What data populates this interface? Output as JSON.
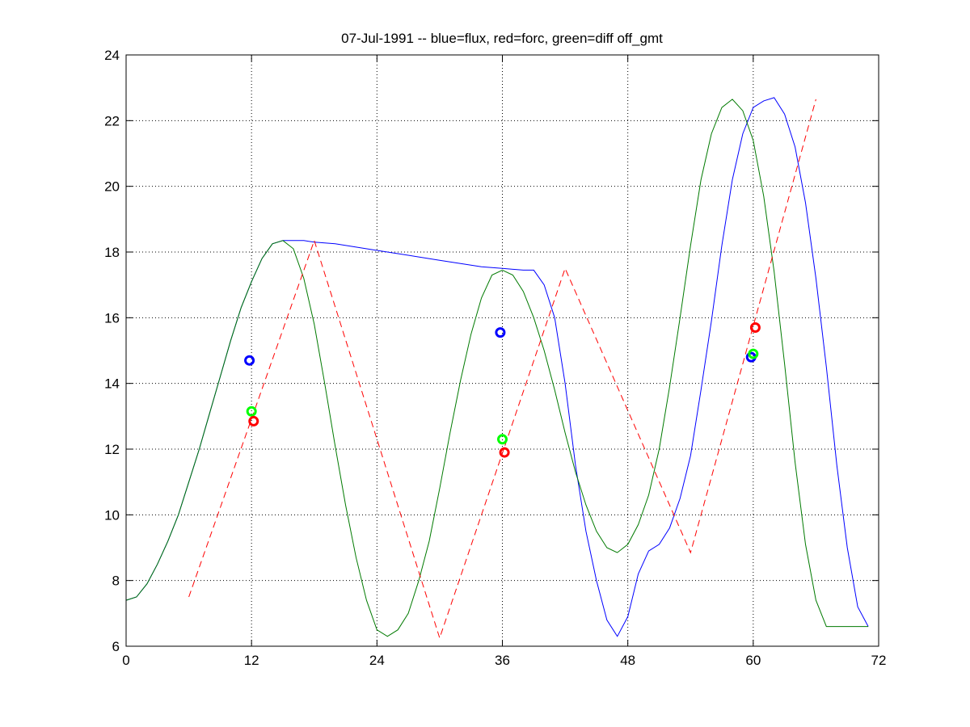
{
  "chart_data": {
    "type": "line",
    "title": "07-Jul-1991 -- blue=flux, red=forc, green=diff off_gmt",
    "xlabel": "",
    "ylabel": "",
    "xlim": [
      0,
      72
    ],
    "ylim": [
      6,
      24
    ],
    "xticks": [
      0,
      12,
      24,
      36,
      48,
      60,
      72
    ],
    "yticks": [
      6,
      8,
      10,
      12,
      14,
      16,
      18,
      20,
      22,
      24
    ],
    "xtick_labels": [
      "0",
      "12",
      "24",
      "36",
      "48",
      "60",
      "72"
    ],
    "ytick_labels": [
      "6",
      "8",
      "10",
      "12",
      "14",
      "16",
      "18",
      "20",
      "22",
      "24"
    ],
    "grid": true,
    "grid_style": "dotted",
    "series": [
      {
        "color": "#0000ff",
        "style": "solid",
        "x": [
          0,
          1,
          2,
          3,
          4,
          5,
          6,
          7,
          8,
          9,
          10,
          11,
          12,
          13,
          14,
          15,
          16,
          17,
          18,
          20,
          22,
          24,
          26,
          28,
          30,
          32,
          34,
          36,
          38,
          39,
          40,
          41,
          42,
          43,
          44,
          45,
          46,
          47,
          48,
          49,
          50,
          51,
          52,
          53,
          54,
          55,
          56,
          57,
          58,
          59,
          60,
          61,
          62,
          63,
          64,
          65,
          66,
          67,
          68,
          69,
          70,
          71
        ],
        "y": [
          7.4,
          7.5,
          7.9,
          8.5,
          9.2,
          10.0,
          11.0,
          12.0,
          13.1,
          14.2,
          15.3,
          16.3,
          17.1,
          17.8,
          18.25,
          18.35,
          18.35,
          18.35,
          18.3,
          18.25,
          18.15,
          18.05,
          17.95,
          17.85,
          17.75,
          17.65,
          17.55,
          17.5,
          17.45,
          17.45,
          17.0,
          16.0,
          14.0,
          11.5,
          9.5,
          8.0,
          6.8,
          6.3,
          6.9,
          8.2,
          8.9,
          9.1,
          9.6,
          10.5,
          11.8,
          13.8,
          15.9,
          18.2,
          20.2,
          21.6,
          22.4,
          22.6,
          22.7,
          22.2,
          21.2,
          19.5,
          17.2,
          14.5,
          11.5,
          9.0,
          7.2,
          6.6
        ]
      },
      {
        "color": "#007a00",
        "style": "solid",
        "x": [
          0,
          1,
          2,
          3,
          4,
          5,
          6,
          7,
          8,
          9,
          10,
          11,
          12,
          13,
          14,
          15,
          16,
          17,
          18,
          19,
          20,
          21,
          22,
          23,
          24,
          25,
          26,
          27,
          28,
          29,
          30,
          31,
          32,
          33,
          34,
          35,
          36,
          37,
          38,
          39,
          40,
          41,
          42,
          43,
          44,
          45,
          46,
          47,
          48,
          49,
          50,
          51,
          52,
          53,
          54,
          55,
          56,
          57,
          58,
          59,
          60,
          61,
          62,
          63,
          64,
          65,
          66,
          67,
          68,
          69,
          70,
          71
        ],
        "y": [
          7.4,
          7.5,
          7.9,
          8.5,
          9.2,
          10.0,
          11.0,
          12.0,
          13.1,
          14.2,
          15.3,
          16.3,
          17.1,
          17.8,
          18.25,
          18.35,
          18.1,
          17.2,
          15.8,
          14.0,
          12.1,
          10.3,
          8.7,
          7.4,
          6.5,
          6.3,
          6.5,
          7.0,
          8.0,
          9.2,
          10.8,
          12.5,
          14.1,
          15.5,
          16.6,
          17.3,
          17.45,
          17.3,
          16.8,
          16.0,
          15.0,
          13.8,
          12.5,
          11.3,
          10.3,
          9.5,
          9.0,
          8.85,
          9.1,
          9.7,
          10.6,
          12.0,
          13.9,
          16.0,
          18.2,
          20.2,
          21.6,
          22.4,
          22.65,
          22.3,
          21.4,
          19.7,
          17.4,
          14.6,
          11.6,
          9.1,
          7.4,
          6.6,
          6.6,
          6.6,
          6.6,
          6.6
        ]
      },
      {
        "color": "#ff0000",
        "style": "dashed",
        "x": [
          6,
          18,
          30,
          42,
          54,
          66
        ],
        "y": [
          7.5,
          18.35,
          6.25,
          17.5,
          8.85,
          22.65
        ]
      }
    ],
    "markers": [
      {
        "color": "#0000ff",
        "x": 11.8,
        "y": 14.7
      },
      {
        "color": "#00ff00",
        "x": 12.0,
        "y": 13.15
      },
      {
        "color": "#ff0000",
        "x": 12.2,
        "y": 12.85
      },
      {
        "color": "#0000ff",
        "x": 35.8,
        "y": 15.55
      },
      {
        "color": "#00ff00",
        "x": 36.0,
        "y": 12.3
      },
      {
        "color": "#ff0000",
        "x": 36.2,
        "y": 11.9
      },
      {
        "color": "#0000ff",
        "x": 59.8,
        "y": 14.8
      },
      {
        "color": "#00ff00",
        "x": 60.0,
        "y": 14.9
      },
      {
        "color": "#ff0000",
        "x": 60.2,
        "y": 15.7
      }
    ]
  }
}
